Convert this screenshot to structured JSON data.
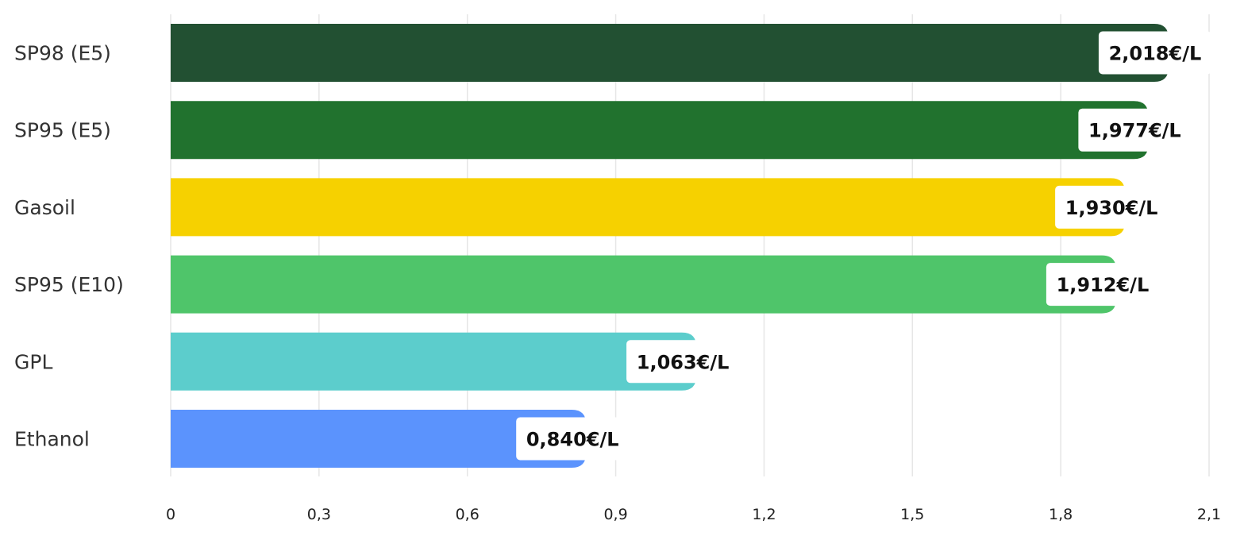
{
  "chart_data": {
    "type": "bar",
    "orientation": "horizontal",
    "categories": [
      "SP98 (E5)",
      "SP95 (E5)",
      "Gasoil",
      "SP95 (E10)",
      "GPL",
      "Ethanol"
    ],
    "values": [
      2.018,
      1.977,
      1.93,
      1.912,
      1.063,
      0.84
    ],
    "value_labels": [
      "2,018€/L",
      "1,977€/L",
      "1,930€/L",
      "1,912€/L",
      "1,063€/L",
      "0,840€/L"
    ],
    "colors": [
      "#225032",
      "#21722e",
      "#f6d100",
      "#4fc56a",
      "#5ccdcc",
      "#5b93fd"
    ],
    "xticks": [
      0,
      0.3,
      0.6,
      0.9,
      1.2,
      1.5,
      1.8,
      2.1
    ],
    "xtick_labels": [
      "0",
      "0,3",
      "0,6",
      "0,9",
      "1,2",
      "1,5",
      "1,8",
      "2,1"
    ],
    "xlim": [
      0,
      2.1
    ],
    "grid": true,
    "title": "",
    "xlabel": "",
    "ylabel": ""
  }
}
